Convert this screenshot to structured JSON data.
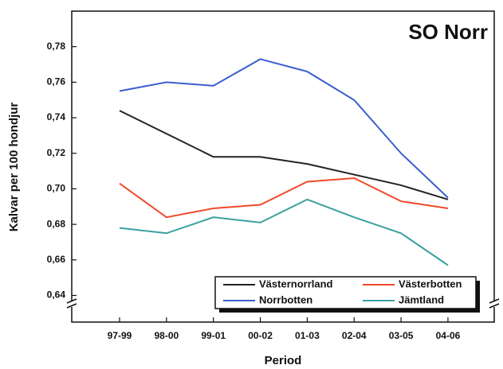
{
  "chart_data": {
    "type": "line",
    "title": "SO Norr",
    "x_label": "Period",
    "y_label": "Kalvar per 100 hondjur",
    "categories": [
      "97-99",
      "98-00",
      "99-01",
      "00-02",
      "01-03",
      "02-04",
      "03-05",
      "04-06"
    ],
    "series": [
      {
        "name": "Västernorrland",
        "color": "#222222",
        "values": [
          0.744,
          0.731,
          0.718,
          0.718,
          0.714,
          0.708,
          0.702,
          0.694
        ]
      },
      {
        "name": "Västerbotten",
        "color": "#f04a2a",
        "values": [
          0.703,
          0.684,
          0.689,
          0.691,
          0.704,
          0.706,
          0.693,
          0.689
        ]
      },
      {
        "name": "Norrbotten",
        "color": "#3a5fcd",
        "values": [
          0.755,
          0.76,
          0.758,
          0.773,
          0.766,
          0.75,
          0.72,
          0.695
        ]
      },
      {
        "name": "Jämtland",
        "color": "#3aa0a0",
        "values": [
          0.678,
          0.675,
          0.684,
          0.681,
          0.694,
          0.684,
          0.675,
          0.657
        ]
      }
    ],
    "ylim": [
      0.625,
      0.8
    ],
    "yticks": [
      {
        "value": 0.64,
        "label": "0,64"
      },
      {
        "value": 0.66,
        "label": "0,66"
      },
      {
        "value": 0.68,
        "label": "0,68"
      },
      {
        "value": 0.7,
        "label": "0,70"
      },
      {
        "value": 0.72,
        "label": "0,72"
      },
      {
        "value": 0.74,
        "label": "0,74"
      },
      {
        "value": 0.76,
        "label": "0,76"
      },
      {
        "value": 0.78,
        "label": "0,78"
      }
    ],
    "grid": false,
    "legend": "lower right"
  }
}
